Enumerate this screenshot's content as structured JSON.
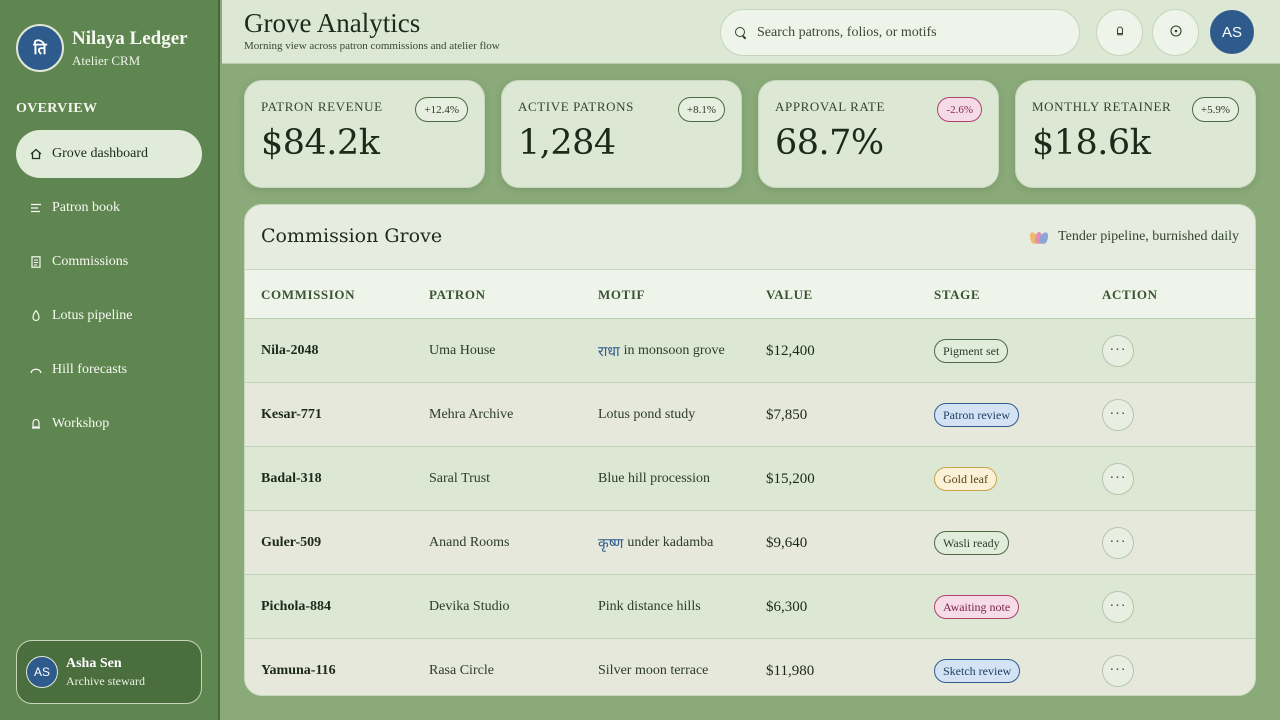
{
  "brand": {
    "title": "Nilaya Ledger",
    "subtitle": "Atelier CRM",
    "logo_glyph": "ति"
  },
  "sidebar": {
    "section": "OVERVIEW",
    "items": [
      {
        "label": "Grove dashboard",
        "icon": "home-icon",
        "active": true
      },
      {
        "label": "Patron book",
        "icon": "list-icon"
      },
      {
        "label": "Commissions",
        "icon": "document-icon"
      },
      {
        "label": "Lotus pipeline",
        "icon": "flame-icon"
      },
      {
        "label": "Hill forecasts",
        "icon": "arc-icon"
      },
      {
        "label": "Workshop",
        "icon": "bell-icon"
      }
    ],
    "profile": {
      "initials": "AS",
      "name": "Asha Sen",
      "role": "Archive steward"
    }
  },
  "header": {
    "title": "Grove Analytics",
    "subtitle": "Morning view across patron commissions and atelier flow",
    "search_placeholder": "Search patrons, folios, or motifs",
    "avatar": "AS"
  },
  "kpis": [
    {
      "label": "PATRON REVENUE",
      "value": "$84.2k",
      "delta": "+12.4%",
      "trend": "up"
    },
    {
      "label": "ACTIVE PATRONS",
      "value": "1,284",
      "delta": "+8.1%",
      "trend": "up"
    },
    {
      "label": "APPROVAL RATE",
      "value": "68.7%",
      "delta": "-2.6%",
      "trend": "down"
    },
    {
      "label": "MONTHLY RETAINER",
      "value": "$18.6k",
      "delta": "+5.9%",
      "trend": "up"
    }
  ],
  "table": {
    "title": "Commission Grove",
    "note": "Tender pipeline, burnished daily",
    "columns": [
      "COMMISSION",
      "PATRON",
      "MOTIF",
      "VALUE",
      "STAGE",
      "ACTION"
    ],
    "rows": [
      {
        "id": "Nila-2048",
        "patron": "Uma House",
        "motif_deva": "राधा",
        "motif": "in monsoon grove",
        "value": "$12,400",
        "stage": "Pigment set",
        "stage_tone": "green"
      },
      {
        "id": "Kesar-771",
        "patron": "Mehra Archive",
        "motif_deva": "",
        "motif": "Lotus pond study",
        "value": "$7,850",
        "stage": "Patron review",
        "stage_tone": "blue"
      },
      {
        "id": "Badal-318",
        "patron": "Saral Trust",
        "motif_deva": "",
        "motif": "Blue hill procession",
        "value": "$15,200",
        "stage": "Gold leaf",
        "stage_tone": "gold"
      },
      {
        "id": "Guler-509",
        "patron": "Anand Rooms",
        "motif_deva": "कृष्ण",
        "motif": "under kadamba",
        "value": "$9,640",
        "stage": "Wasli ready",
        "stage_tone": "green"
      },
      {
        "id": "Pichola-884",
        "patron": "Devika Studio",
        "motif_deva": "",
        "motif": "Pink distance hills",
        "value": "$6,300",
        "stage": "Awaiting note",
        "stage_tone": "pink"
      },
      {
        "id": "Yamuna-116",
        "patron": "Rasa Circle",
        "motif_deva": "",
        "motif": "Silver moon terrace",
        "value": "$11,980",
        "stage": "Sketch review",
        "stage_tone": "blue"
      }
    ]
  }
}
